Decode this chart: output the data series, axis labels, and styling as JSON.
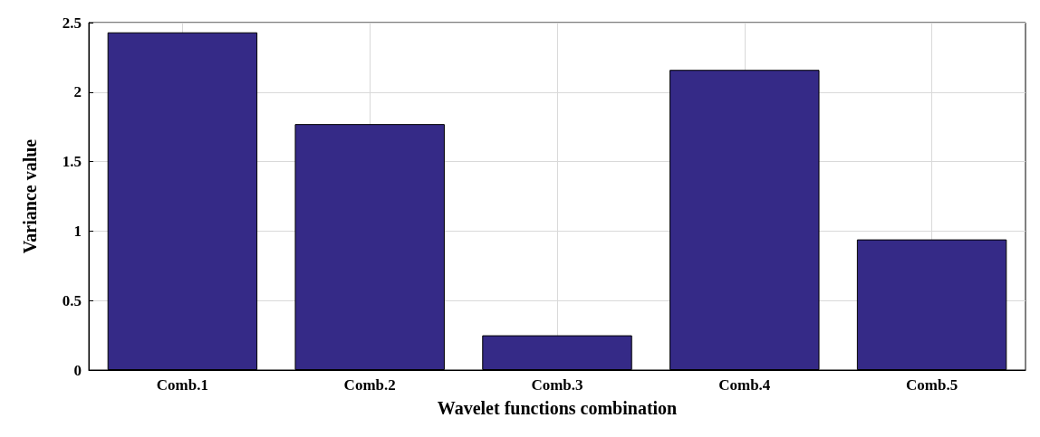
{
  "chart_data": {
    "type": "bar",
    "xlabel": "Wavelet functions combination",
    "ylabel": "Variance value",
    "categories": [
      "Comb.1",
      "Comb.2",
      "Comb.3",
      "Comb.4",
      "Comb.5"
    ],
    "values": [
      2.43,
      1.77,
      0.25,
      2.16,
      0.94
    ],
    "color": "#352a87",
    "ylim": [
      0,
      2.5
    ],
    "yticks": [
      0,
      0.5,
      1,
      1.5,
      2,
      2.5
    ],
    "grid": true
  }
}
